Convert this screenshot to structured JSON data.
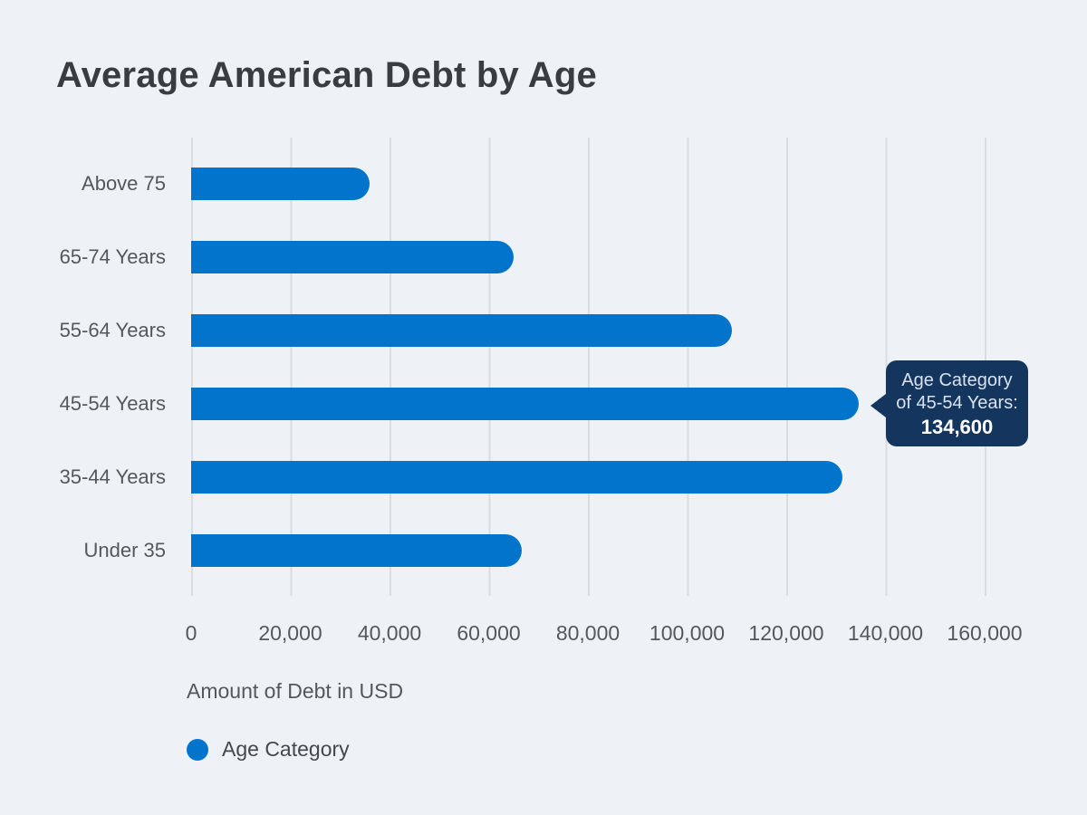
{
  "title": "Average American Debt by Age",
  "colors": {
    "background": "#eef2f6",
    "bar": "#0374cc",
    "gridline": "#d9dce0",
    "tooltip_background": "#14355e",
    "tooltip_text": "#d8e2ee",
    "title_text": "#393d42",
    "axis_text": "#54585c"
  },
  "chart_data": {
    "type": "bar",
    "orientation": "horizontal",
    "title": "Average American Debt by Age",
    "categories": [
      "Above 75",
      "65-74 Years",
      "55-64 Years",
      "45-54 Years",
      "35-44 Years",
      "Under 35"
    ],
    "values": [
      36000,
      65000,
      109000,
      134600,
      131300,
      66600
    ],
    "series_name": "Age Category",
    "xlabel": "Amount of Debt in USD",
    "ylabel": "",
    "xlim": [
      0,
      160000
    ],
    "x_ticks": [
      "0",
      "20,000",
      "40,000",
      "60,000",
      "80,000",
      "100,000",
      "120,000",
      "140,000",
      "160,000"
    ],
    "grid": "vertical-only",
    "legend_position": "bottom-left"
  },
  "tooltip": {
    "line1": "Age Category",
    "line2": "of 45-54 Years:",
    "value": "134,600",
    "target_category": "45-54 Years"
  }
}
